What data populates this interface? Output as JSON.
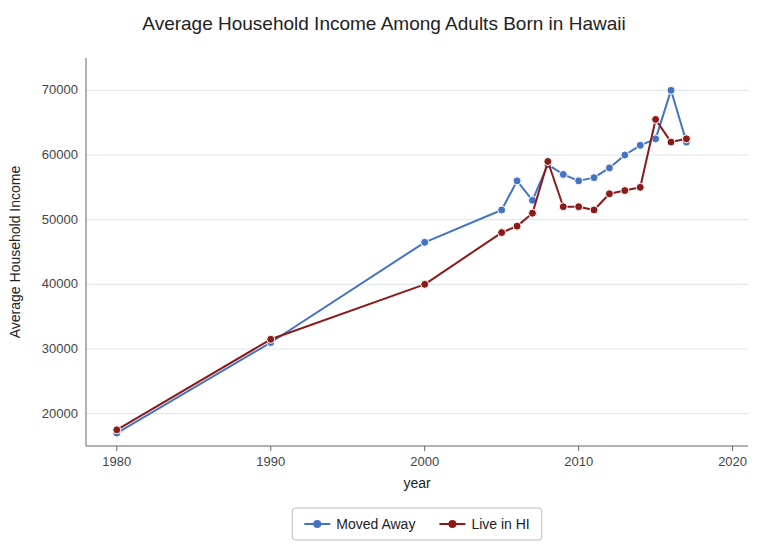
{
  "chart_data": {
    "type": "line",
    "title": "Average Household Income Among Adults Born in Hawaii",
    "xlabel": "year",
    "ylabel": "Average Household Income",
    "x": [
      1980,
      1990,
      2000,
      2005,
      2006,
      2007,
      2008,
      2009,
      2010,
      2011,
      2012,
      2013,
      2014,
      2015,
      2016,
      2017
    ],
    "series": [
      {
        "name": "Moved Away",
        "color": "#4472C4",
        "values": [
          17000,
          31000,
          46500,
          51500,
          56000,
          53000,
          58500,
          57000,
          56000,
          56500,
          58000,
          60000,
          61500,
          62500,
          70000,
          62000
        ]
      },
      {
        "name": "Live in HI",
        "color": "#8B1A1A",
        "values": [
          17500,
          31500,
          40000,
          48000,
          49000,
          51000,
          59000,
          52000,
          52000,
          51500,
          54000,
          54500,
          55000,
          65500,
          62000,
          62500
        ]
      }
    ],
    "xlim": [
      1978,
      2021
    ],
    "xticks": [
      1980,
      1990,
      2000,
      2010,
      2020
    ],
    "ylim": [
      15000,
      75000
    ],
    "yticks": [
      20000,
      30000,
      40000,
      50000,
      60000,
      70000
    ],
    "grid": true,
    "legend": "bottom",
    "marker": "circle"
  }
}
